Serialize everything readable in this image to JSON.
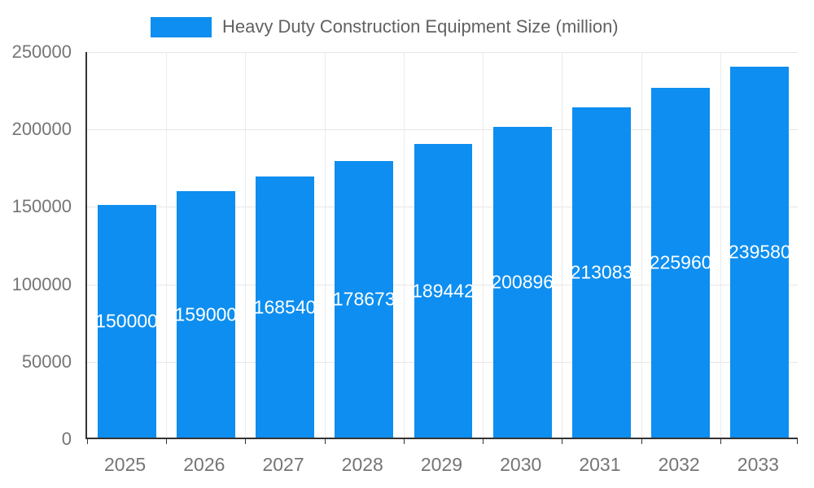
{
  "chart_data": {
    "type": "bar",
    "title": "Heavy Duty Construction Equipment Size (million)",
    "categories": [
      "2025",
      "2026",
      "2027",
      "2028",
      "2029",
      "2030",
      "2031",
      "2032",
      "2033"
    ],
    "values": [
      150000,
      159000,
      168540,
      178673,
      189442,
      200896,
      213083,
      225960,
      239580
    ],
    "bar_labels": [
      "150000",
      "159000",
      "168540",
      "178673",
      "189442",
      "200896",
      "213083",
      "225960",
      "239580"
    ],
    "xlabel": "",
    "ylabel": "",
    "ylim": [
      0,
      250000
    ],
    "yticks": [
      0,
      50000,
      100000,
      150000,
      200000,
      250000
    ],
    "ytick_labels": [
      "0",
      "50000",
      "100000",
      "150000",
      "200000",
      "250000"
    ],
    "legend_position": "top",
    "grid": true,
    "colors": {
      "bar": "#0d8ef0",
      "grid": "#e6e6e6",
      "axis": "#333333",
      "tick_label": "#757575",
      "title": "#616161",
      "bar_label": "#ffffff",
      "background": "#ffffff"
    }
  }
}
